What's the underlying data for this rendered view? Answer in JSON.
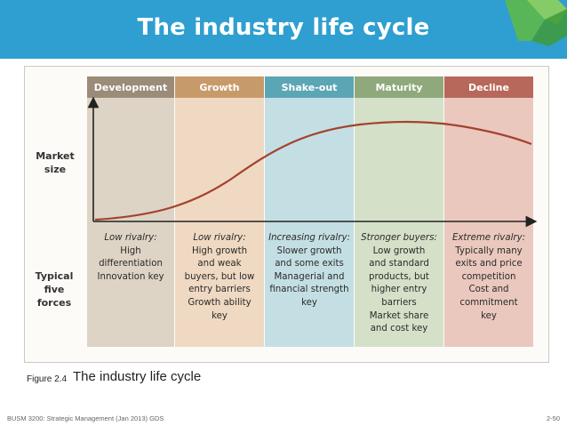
{
  "title": "The industry life cycle",
  "y_axis_label": "Market size",
  "forces_label": "Typical five forces",
  "stages": [
    {
      "name": "Development",
      "force": "Low rivalry:",
      "lines": [
        "High",
        "differentiation",
        "Innovation key"
      ],
      "head_color": "#9a8c78",
      "bg_color": "#ddd4c5"
    },
    {
      "name": "Growth",
      "force": "Low rivalry:",
      "lines": [
        "High growth",
        "and weak",
        "buyers, but low",
        "entry barriers",
        "Growth ability",
        "key"
      ],
      "head_color": "#c79a6a",
      "bg_color": "#efd9c2"
    },
    {
      "name": "Shake-out",
      "force": "Increasing rivalry:",
      "lines": [
        "Slower growth",
        "and some exits",
        "Managerial and",
        "financial strength",
        "key"
      ],
      "head_color": "#5ba6b5",
      "bg_color": "#c4dfe3"
    },
    {
      "name": "Maturity",
      "force": "Stronger buyers:",
      "lines": [
        "Low growth",
        "and standard",
        "products, but",
        "higher entry",
        "barriers",
        "Market share",
        "and cost key"
      ],
      "head_color": "#8fa97c",
      "bg_color": "#d5e0c8"
    },
    {
      "name": "Decline",
      "force": "Extreme rivalry:",
      "lines": [
        "Typically many",
        "exits and price",
        "competition",
        "Cost and",
        "commitment",
        "key"
      ],
      "head_color": "#b8685a",
      "bg_color": "#eac8be"
    }
  ],
  "caption": {
    "label": "Figure 2.4",
    "title": "The industry life cycle"
  },
  "footer": {
    "left": "BUSM 3200: Strategic Management (Jan 2013) GDS",
    "right": "2-50"
  },
  "colors": {
    "header": "#2e9fd0",
    "curve": "#a3422f"
  }
}
